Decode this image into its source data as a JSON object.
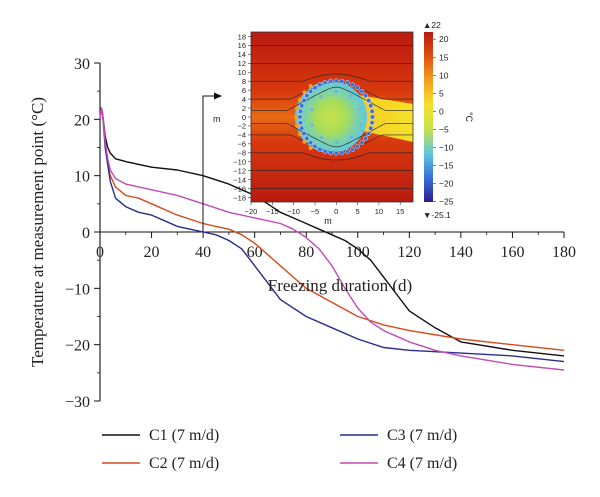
{
  "chart_data": [
    {
      "type": "line",
      "xlabel": "Freezing duration (d)",
      "ylabel": "Temperature at measurement point (°C)",
      "xlim": [
        0,
        180
      ],
      "ylim": [
        -30,
        30
      ],
      "xticks": [
        0,
        20,
        40,
        60,
        80,
        100,
        120,
        140,
        160,
        180
      ],
      "yticks": [
        30,
        20,
        10,
        0,
        -10,
        -20,
        -30
      ],
      "grid": false,
      "legend_position": "bottom",
      "series": [
        {
          "name": "C1 (7 m/d)",
          "color": "#111111",
          "x": [
            0,
            0.5,
            1,
            2,
            3,
            4,
            6,
            10,
            20,
            30,
            40,
            50,
            55,
            60,
            65,
            70,
            75,
            80,
            85,
            90,
            95,
            100,
            105,
            110,
            115,
            120,
            130,
            140,
            160,
            180
          ],
          "y": [
            20,
            22,
            21,
            17,
            15,
            14,
            13,
            12.5,
            11.5,
            11,
            10,
            8.5,
            7.5,
            6.5,
            5,
            3.5,
            2.5,
            1.5,
            0.5,
            -0.5,
            -1.5,
            -3,
            -5,
            -8,
            -11,
            -14,
            -17,
            -19.5,
            -21,
            -22
          ]
        },
        {
          "name": "C2 (7 m/d)",
          "color": "#d64a1e",
          "x": [
            0,
            0.5,
            1,
            2,
            3,
            4,
            6,
            10,
            15,
            20,
            30,
            40,
            45,
            50,
            55,
            60,
            65,
            70,
            75,
            80,
            90,
            100,
            110,
            120,
            140,
            160,
            180
          ],
          "y": [
            20,
            22,
            21,
            16,
            12,
            10,
            8,
            6.5,
            6,
            5,
            3,
            1.5,
            1,
            0.5,
            -0.5,
            -2,
            -4,
            -6,
            -8,
            -10,
            -12.5,
            -15,
            -16.5,
            -17.5,
            -19,
            -20,
            -21
          ]
        },
        {
          "name": "C3 (7 m/d)",
          "color": "#2a2c8c",
          "x": [
            0,
            0.5,
            1,
            2,
            3,
            4,
            6,
            10,
            15,
            20,
            25,
            30,
            35,
            40,
            45,
            50,
            55,
            60,
            65,
            70,
            80,
            90,
            100,
            110,
            120,
            140,
            160,
            180
          ],
          "y": [
            20,
            22,
            21,
            15,
            12,
            9,
            6,
            4.5,
            3.5,
            3,
            2,
            1,
            0.5,
            0,
            -0.5,
            -1.5,
            -3,
            -6,
            -9,
            -12,
            -15,
            -17,
            -19,
            -20.5,
            -21,
            -21.5,
            -22,
            -23
          ]
        },
        {
          "name": "C4 (7 m/d)",
          "color": "#c34ab6",
          "x": [
            0,
            0.5,
            1,
            2,
            3,
            4,
            6,
            10,
            15,
            20,
            30,
            40,
            50,
            60,
            65,
            70,
            75,
            80,
            85,
            90,
            95,
            100,
            105,
            110,
            115,
            120,
            130,
            140,
            160,
            180
          ],
          "y": [
            20,
            22,
            21,
            16,
            13,
            11,
            9.5,
            8.5,
            8,
            7.5,
            6.5,
            5,
            3.5,
            2.5,
            2,
            1.5,
            0.5,
            -1,
            -3,
            -6,
            -10,
            -13.5,
            -16,
            -17.5,
            -18.5,
            -19.5,
            -21,
            -22,
            -23.5,
            -24.5
          ]
        }
      ]
    },
    {
      "type": "heatmap",
      "xlabel": "m",
      "ylabel": "m",
      "colorbar_label": "°C",
      "colorbar_max_label": "▲22",
      "colorbar_min_label": "▼-25.1",
      "colorbar_ticks": [
        20,
        15,
        10,
        5,
        0,
        -5,
        -10,
        -15,
        -20,
        -25
      ],
      "xticks": [
        -20,
        -15,
        -10,
        -5,
        0,
        5,
        10,
        15
      ],
      "yticks": [
        18,
        16,
        14,
        12,
        10,
        8,
        6,
        4,
        2,
        0,
        -2,
        -4,
        -6,
        -8,
        -10,
        -12,
        -14,
        -16,
        -18
      ],
      "xlim": [
        -20,
        18
      ],
      "ylim": [
        -19,
        19
      ],
      "vmin": -25.1,
      "vmax": 22,
      "colormap": [
        "#2b1f8f",
        "#3a6fd8",
        "#5ec8e0",
        "#c8e24a",
        "#f5e12a",
        "#f5a020",
        "#e05010",
        "#b81a10"
      ],
      "freeze_ring": {
        "center": [
          0,
          0
        ],
        "radius": 8.5
      },
      "inner_pipes": {
        "center": [
          0,
          0
        ],
        "radius": 6
      }
    }
  ]
}
